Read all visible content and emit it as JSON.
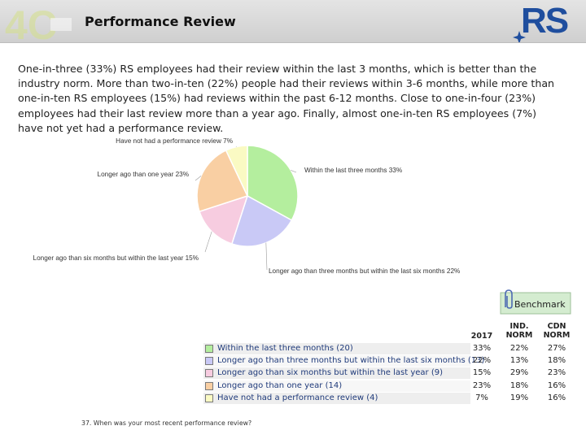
{
  "header": {
    "title": "Performance Review"
  },
  "intro_text": "One-in-three (33%) RS employees had their review within the last 3 months, which is better than the industry norm. More than two-in-ten (22%) people had their reviews within 3-6 months, while more than one-in-ten RS employees (15%) had reviews within the past 6-12 months. Close to one-in-four (23%) employees had their last review more than a year ago. Finally, almost one-in-ten RS employees (7%) have not yet had a performance review.",
  "colors": {
    "green": "#b4ee9e",
    "blue": "#c9c9f6",
    "pink": "#f7cce0",
    "orange": "#f9cfa3",
    "yellow": "#fafac3"
  },
  "chart_data": [
    {
      "type": "pie",
      "slices": [
        {
          "label": "Within the last three months 33%",
          "value": 33,
          "color": "#b4ee9e"
        },
        {
          "label": "Longer ago than three months but within the last six months 22%",
          "value": 22,
          "color": "#c9c9f6"
        },
        {
          "label": "Longer ago than six months but within the last year 15%",
          "value": 15,
          "color": "#f7cce0"
        },
        {
          "label": "Longer ago than one year 23%",
          "value": 23,
          "color": "#f9cfa3"
        },
        {
          "label": "Have not had a performance review 7%",
          "value": 7,
          "color": "#fafac3"
        }
      ]
    },
    {
      "type": "table",
      "columns": [
        "2017",
        "IND. NORM",
        "CDN NORM"
      ],
      "rows": [
        {
          "label": "Within the last three months (20)",
          "color": "#b4ee9e",
          "values": [
            "33%",
            "22%",
            "27%"
          ]
        },
        {
          "label": "Longer ago than three months but within the last six months (13)",
          "color": "#c9c9f6",
          "values": [
            "22%",
            "13%",
            "18%"
          ]
        },
        {
          "label": "Longer ago than six months but within the last year (9)",
          "color": "#f7cce0",
          "values": [
            "15%",
            "29%",
            "23%"
          ]
        },
        {
          "label": "Longer ago than one year (14)",
          "color": "#f9cfa3",
          "values": [
            "23%",
            "18%",
            "16%"
          ]
        },
        {
          "label": "Have not had a performance review (4)",
          "color": "#fafac3",
          "values": [
            "7%",
            "19%",
            "16%"
          ]
        }
      ]
    }
  ],
  "benchmark": {
    "label": "Benchmark"
  },
  "table_headers": {
    "col1": "2017",
    "col2_line1": "IND.",
    "col2_line2": "NORM",
    "col3_line1": "CDN",
    "col3_line2": "NORM"
  },
  "footnote": "37. When was your most recent performance review?",
  "logos": {
    "left_logo_text": "4C",
    "right_logo_text": "RS"
  }
}
